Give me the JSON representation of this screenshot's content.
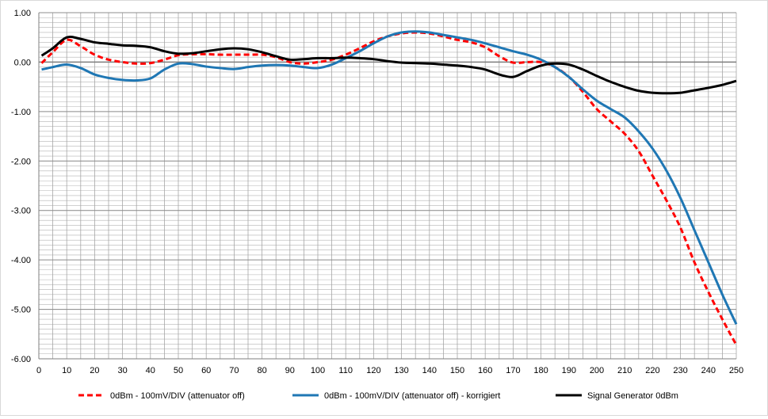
{
  "chart_data": {
    "type": "line",
    "title": "",
    "xlabel": "",
    "ylabel": "",
    "xlim": [
      0,
      250
    ],
    "ylim": [
      -6.0,
      1.0
    ],
    "x_ticks": [
      0,
      10,
      20,
      30,
      40,
      50,
      60,
      70,
      80,
      90,
      100,
      110,
      120,
      130,
      140,
      150,
      160,
      170,
      180,
      190,
      200,
      210,
      220,
      230,
      240,
      250
    ],
    "x_tick_labels": [
      "0",
      "10",
      "20",
      "30",
      "40",
      "50",
      "60",
      "70",
      "80",
      "90",
      "100",
      "110",
      "120",
      "130",
      "140",
      "150",
      "160",
      "170",
      "180",
      "190",
      "200",
      "210",
      "220",
      "230",
      "240",
      "250"
    ],
    "y_ticks": [
      1.0,
      0.0,
      -1.0,
      -2.0,
      -3.0,
      -4.0,
      -5.0,
      -6.0
    ],
    "y_tick_labels": [
      "1.00",
      "0.00",
      "-1.00",
      "-2.00",
      "-3.00",
      "-4.00",
      "-5.00",
      "-6.00"
    ],
    "grid": true,
    "legend_position": "bottom",
    "series": [
      {
        "name": "0dBm - 100mV/DIV (attenuator off)",
        "color": "#ff0000",
        "style": "dashed",
        "x": [
          1,
          5,
          10,
          15,
          20,
          25,
          30,
          35,
          40,
          45,
          50,
          55,
          60,
          65,
          70,
          75,
          80,
          85,
          90,
          95,
          100,
          105,
          110,
          115,
          120,
          125,
          130,
          135,
          140,
          145,
          150,
          155,
          160,
          165,
          170,
          175,
          180,
          185,
          190,
          195,
          200,
          205,
          210,
          215,
          220,
          225,
          230,
          235,
          240,
          245,
          250
        ],
        "y": [
          -0.02,
          0.2,
          0.45,
          0.32,
          0.15,
          0.05,
          0.0,
          -0.03,
          -0.02,
          0.05,
          0.14,
          0.16,
          0.16,
          0.15,
          0.15,
          0.15,
          0.15,
          0.1,
          0.0,
          -0.03,
          0.0,
          0.05,
          0.15,
          0.28,
          0.42,
          0.52,
          0.58,
          0.6,
          0.58,
          0.52,
          0.45,
          0.4,
          0.3,
          0.12,
          -0.01,
          0.0,
          0.0,
          -0.1,
          -0.3,
          -0.6,
          -0.95,
          -1.2,
          -1.45,
          -1.8,
          -2.3,
          -2.8,
          -3.35,
          -4.05,
          -4.65,
          -5.2,
          -5.72
        ]
      },
      {
        "name": "0dBm - 100mV/DIV (attenuator off) - korrigiert",
        "color": "#1f77b4",
        "style": "solid",
        "x": [
          1,
          5,
          10,
          15,
          20,
          25,
          30,
          35,
          40,
          45,
          50,
          55,
          60,
          65,
          70,
          75,
          80,
          85,
          90,
          95,
          100,
          105,
          110,
          115,
          120,
          125,
          130,
          135,
          140,
          145,
          150,
          155,
          160,
          165,
          170,
          175,
          180,
          185,
          190,
          195,
          200,
          205,
          210,
          215,
          220,
          225,
          230,
          235,
          240,
          245,
          250
        ],
        "y": [
          -0.15,
          -0.1,
          -0.05,
          -0.12,
          -0.25,
          -0.32,
          -0.36,
          -0.37,
          -0.33,
          -0.15,
          -0.03,
          -0.04,
          -0.09,
          -0.12,
          -0.14,
          -0.1,
          -0.07,
          -0.06,
          -0.07,
          -0.1,
          -0.12,
          -0.05,
          0.08,
          0.22,
          0.38,
          0.52,
          0.6,
          0.62,
          0.6,
          0.55,
          0.5,
          0.45,
          0.38,
          0.3,
          0.22,
          0.15,
          0.05,
          -0.1,
          -0.3,
          -0.55,
          -0.78,
          -0.95,
          -1.12,
          -1.4,
          -1.75,
          -2.2,
          -2.75,
          -3.4,
          -4.05,
          -4.7,
          -5.3
        ]
      },
      {
        "name": "Signal Generator 0dBm",
        "color": "#000000",
        "style": "solid",
        "x": [
          1,
          5,
          10,
          15,
          20,
          25,
          30,
          35,
          40,
          45,
          50,
          55,
          60,
          65,
          70,
          75,
          80,
          85,
          90,
          95,
          100,
          105,
          110,
          115,
          120,
          125,
          130,
          135,
          140,
          145,
          150,
          155,
          160,
          165,
          170,
          175,
          180,
          185,
          190,
          195,
          200,
          205,
          210,
          215,
          220,
          225,
          230,
          235,
          240,
          245,
          250
        ],
        "y": [
          0.13,
          0.28,
          0.5,
          0.47,
          0.4,
          0.37,
          0.34,
          0.33,
          0.3,
          0.22,
          0.17,
          0.18,
          0.22,
          0.26,
          0.28,
          0.26,
          0.2,
          0.12,
          0.05,
          0.06,
          0.08,
          0.08,
          0.09,
          0.08,
          0.06,
          0.02,
          -0.01,
          -0.02,
          -0.03,
          -0.05,
          -0.07,
          -0.1,
          -0.15,
          -0.25,
          -0.3,
          -0.18,
          -0.07,
          -0.03,
          -0.05,
          -0.15,
          -0.28,
          -0.4,
          -0.5,
          -0.58,
          -0.62,
          -0.63,
          -0.62,
          -0.57,
          -0.52,
          -0.46,
          -0.38
        ]
      }
    ]
  }
}
